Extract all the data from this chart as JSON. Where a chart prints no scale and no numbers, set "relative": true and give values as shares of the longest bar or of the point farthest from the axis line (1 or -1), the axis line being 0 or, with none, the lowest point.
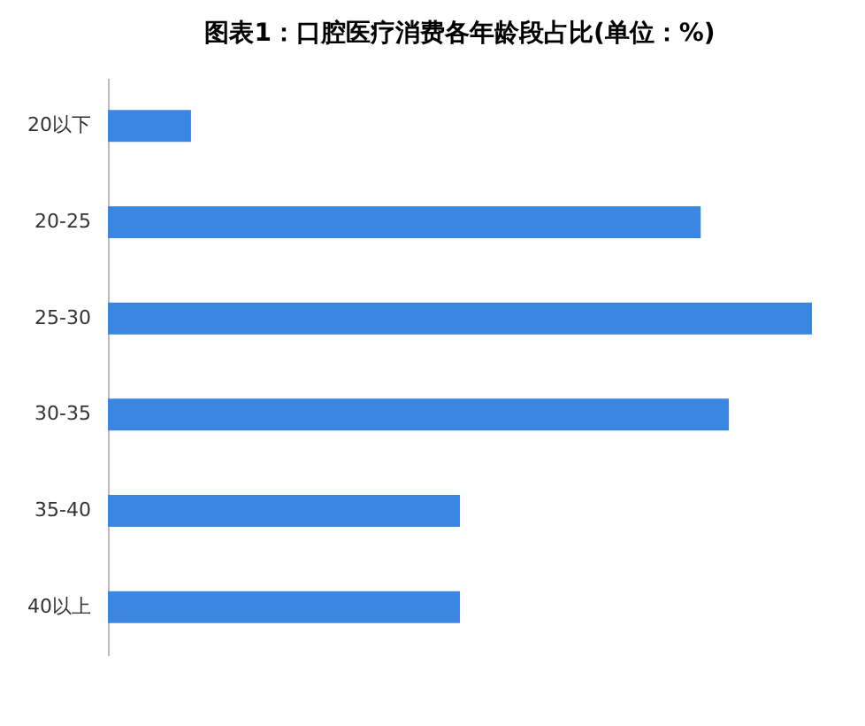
{
  "chart_data": {
    "type": "bar",
    "orientation": "horizontal",
    "relative": true,
    "title": "图表1：口腔医疗消费各年龄段占比(单位：%)",
    "categories": [
      "20以下",
      "20-25",
      "25-30",
      "30-35",
      "35-40",
      "40以上"
    ],
    "values": [
      0.118,
      0.842,
      1,
      0.882,
      0.5,
      0.5
    ],
    "color": "#3b86e0",
    "grid": false
  }
}
